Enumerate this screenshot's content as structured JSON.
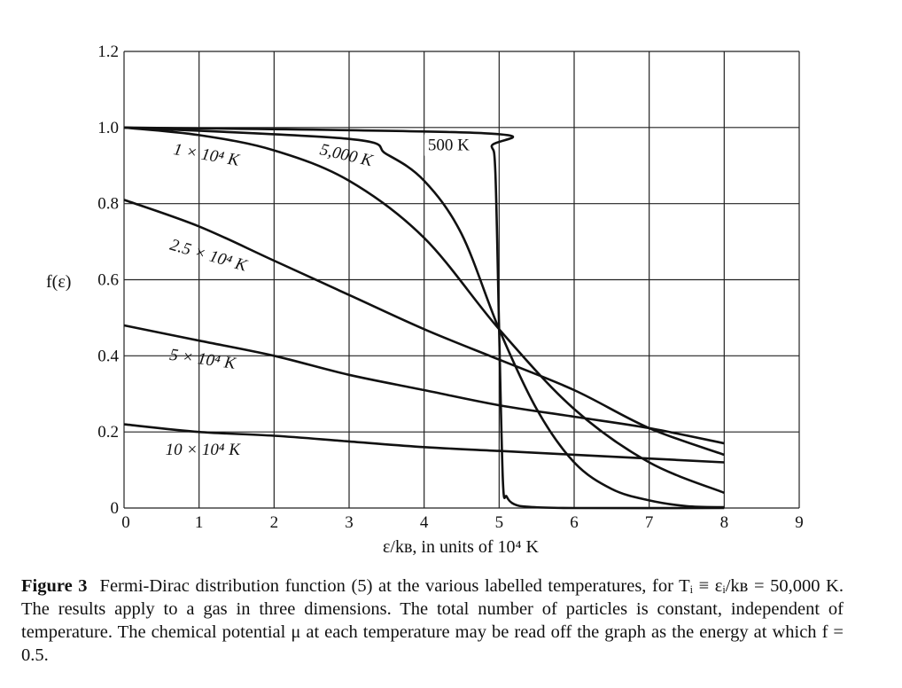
{
  "chart_data": {
    "type": "line",
    "xlabel": "ε/kʙ, in units of 10⁴ K",
    "ylabel": "f(ε)",
    "xlim": [
      0,
      9
    ],
    "ylim": [
      0,
      1.2
    ],
    "xticks": [
      "0",
      "1",
      "2",
      "3",
      "4",
      "5",
      "6",
      "7",
      "8",
      "9"
    ],
    "yticks": [
      "0",
      "0.2",
      "0.4",
      "0.6",
      "0.8",
      "1.0",
      "1.2"
    ],
    "grid": true,
    "series": [
      {
        "name": "500 K",
        "x": [
          0,
          4.8,
          4.9,
          4.95,
          5.0,
          5.05,
          5.1,
          5.2,
          5.4,
          6,
          8
        ],
        "y": [
          1.0,
          0.985,
          0.95,
          0.88,
          0.47,
          0.07,
          0.03,
          0.01,
          0.003,
          0.0,
          0.0
        ]
      },
      {
        "name": "5,000 K",
        "x": [
          0,
          3,
          3.5,
          4,
          4.5,
          5,
          5.5,
          6,
          6.5,
          7,
          7.5,
          8
        ],
        "y": [
          1.0,
          0.97,
          0.93,
          0.86,
          0.72,
          0.47,
          0.26,
          0.12,
          0.05,
          0.02,
          0.005,
          0.002
        ]
      },
      {
        "name": "1 × 10⁴ K",
        "x": [
          0,
          1,
          2,
          3,
          4,
          5,
          6,
          7,
          8
        ],
        "y": [
          1.0,
          0.98,
          0.94,
          0.86,
          0.71,
          0.47,
          0.26,
          0.12,
          0.04
        ]
      },
      {
        "name": "2.5 × 10⁴ K",
        "x": [
          0,
          1,
          2,
          3,
          4,
          5,
          6,
          7,
          8
        ],
        "y": [
          0.81,
          0.74,
          0.65,
          0.56,
          0.47,
          0.39,
          0.31,
          0.21,
          0.14
        ]
      },
      {
        "name": "5 × 10⁴ K",
        "x": [
          0,
          1,
          2,
          3,
          4,
          5,
          6,
          7,
          8
        ],
        "y": [
          0.48,
          0.44,
          0.4,
          0.35,
          0.31,
          0.27,
          0.24,
          0.21,
          0.17
        ]
      },
      {
        "name": "10 × 10⁴ K",
        "x": [
          0,
          1,
          2,
          3,
          4,
          5,
          6,
          7,
          8
        ],
        "y": [
          0.22,
          0.2,
          0.19,
          0.175,
          0.16,
          0.15,
          0.14,
          0.13,
          0.12
        ]
      }
    ],
    "annotations": [
      {
        "text": "500 K",
        "x": 4.05,
        "y": 0.94,
        "rotate": 0,
        "boxed": true
      },
      {
        "text": "5,000 K",
        "x": 2.6,
        "y": 0.93,
        "rotate": 13
      },
      {
        "text": "1 × 10⁴ K",
        "x": 0.65,
        "y": 0.93,
        "rotate": 10
      },
      {
        "text": "2.5 × 10⁴ K",
        "x": 0.6,
        "y": 0.68,
        "rotate": 16
      },
      {
        "text": "5 × 10⁴ K",
        "x": 0.6,
        "y": 0.39,
        "rotate": 8
      },
      {
        "text": "10 × 10⁴ K",
        "x": 0.55,
        "y": 0.14,
        "rotate": 0
      }
    ]
  },
  "caption": {
    "label": "Figure 3",
    "text": "Fermi-Dirac distribution function (5) at the various labelled temperatures, for Tᵢ ≡ εᵢ/kʙ = 50,000 K. The results apply to a gas in three dimensions. The total number of particles is constant, independent of temperature. The chemical potential μ at each temperature may be read off the graph as the energy at which f = 0.5."
  }
}
